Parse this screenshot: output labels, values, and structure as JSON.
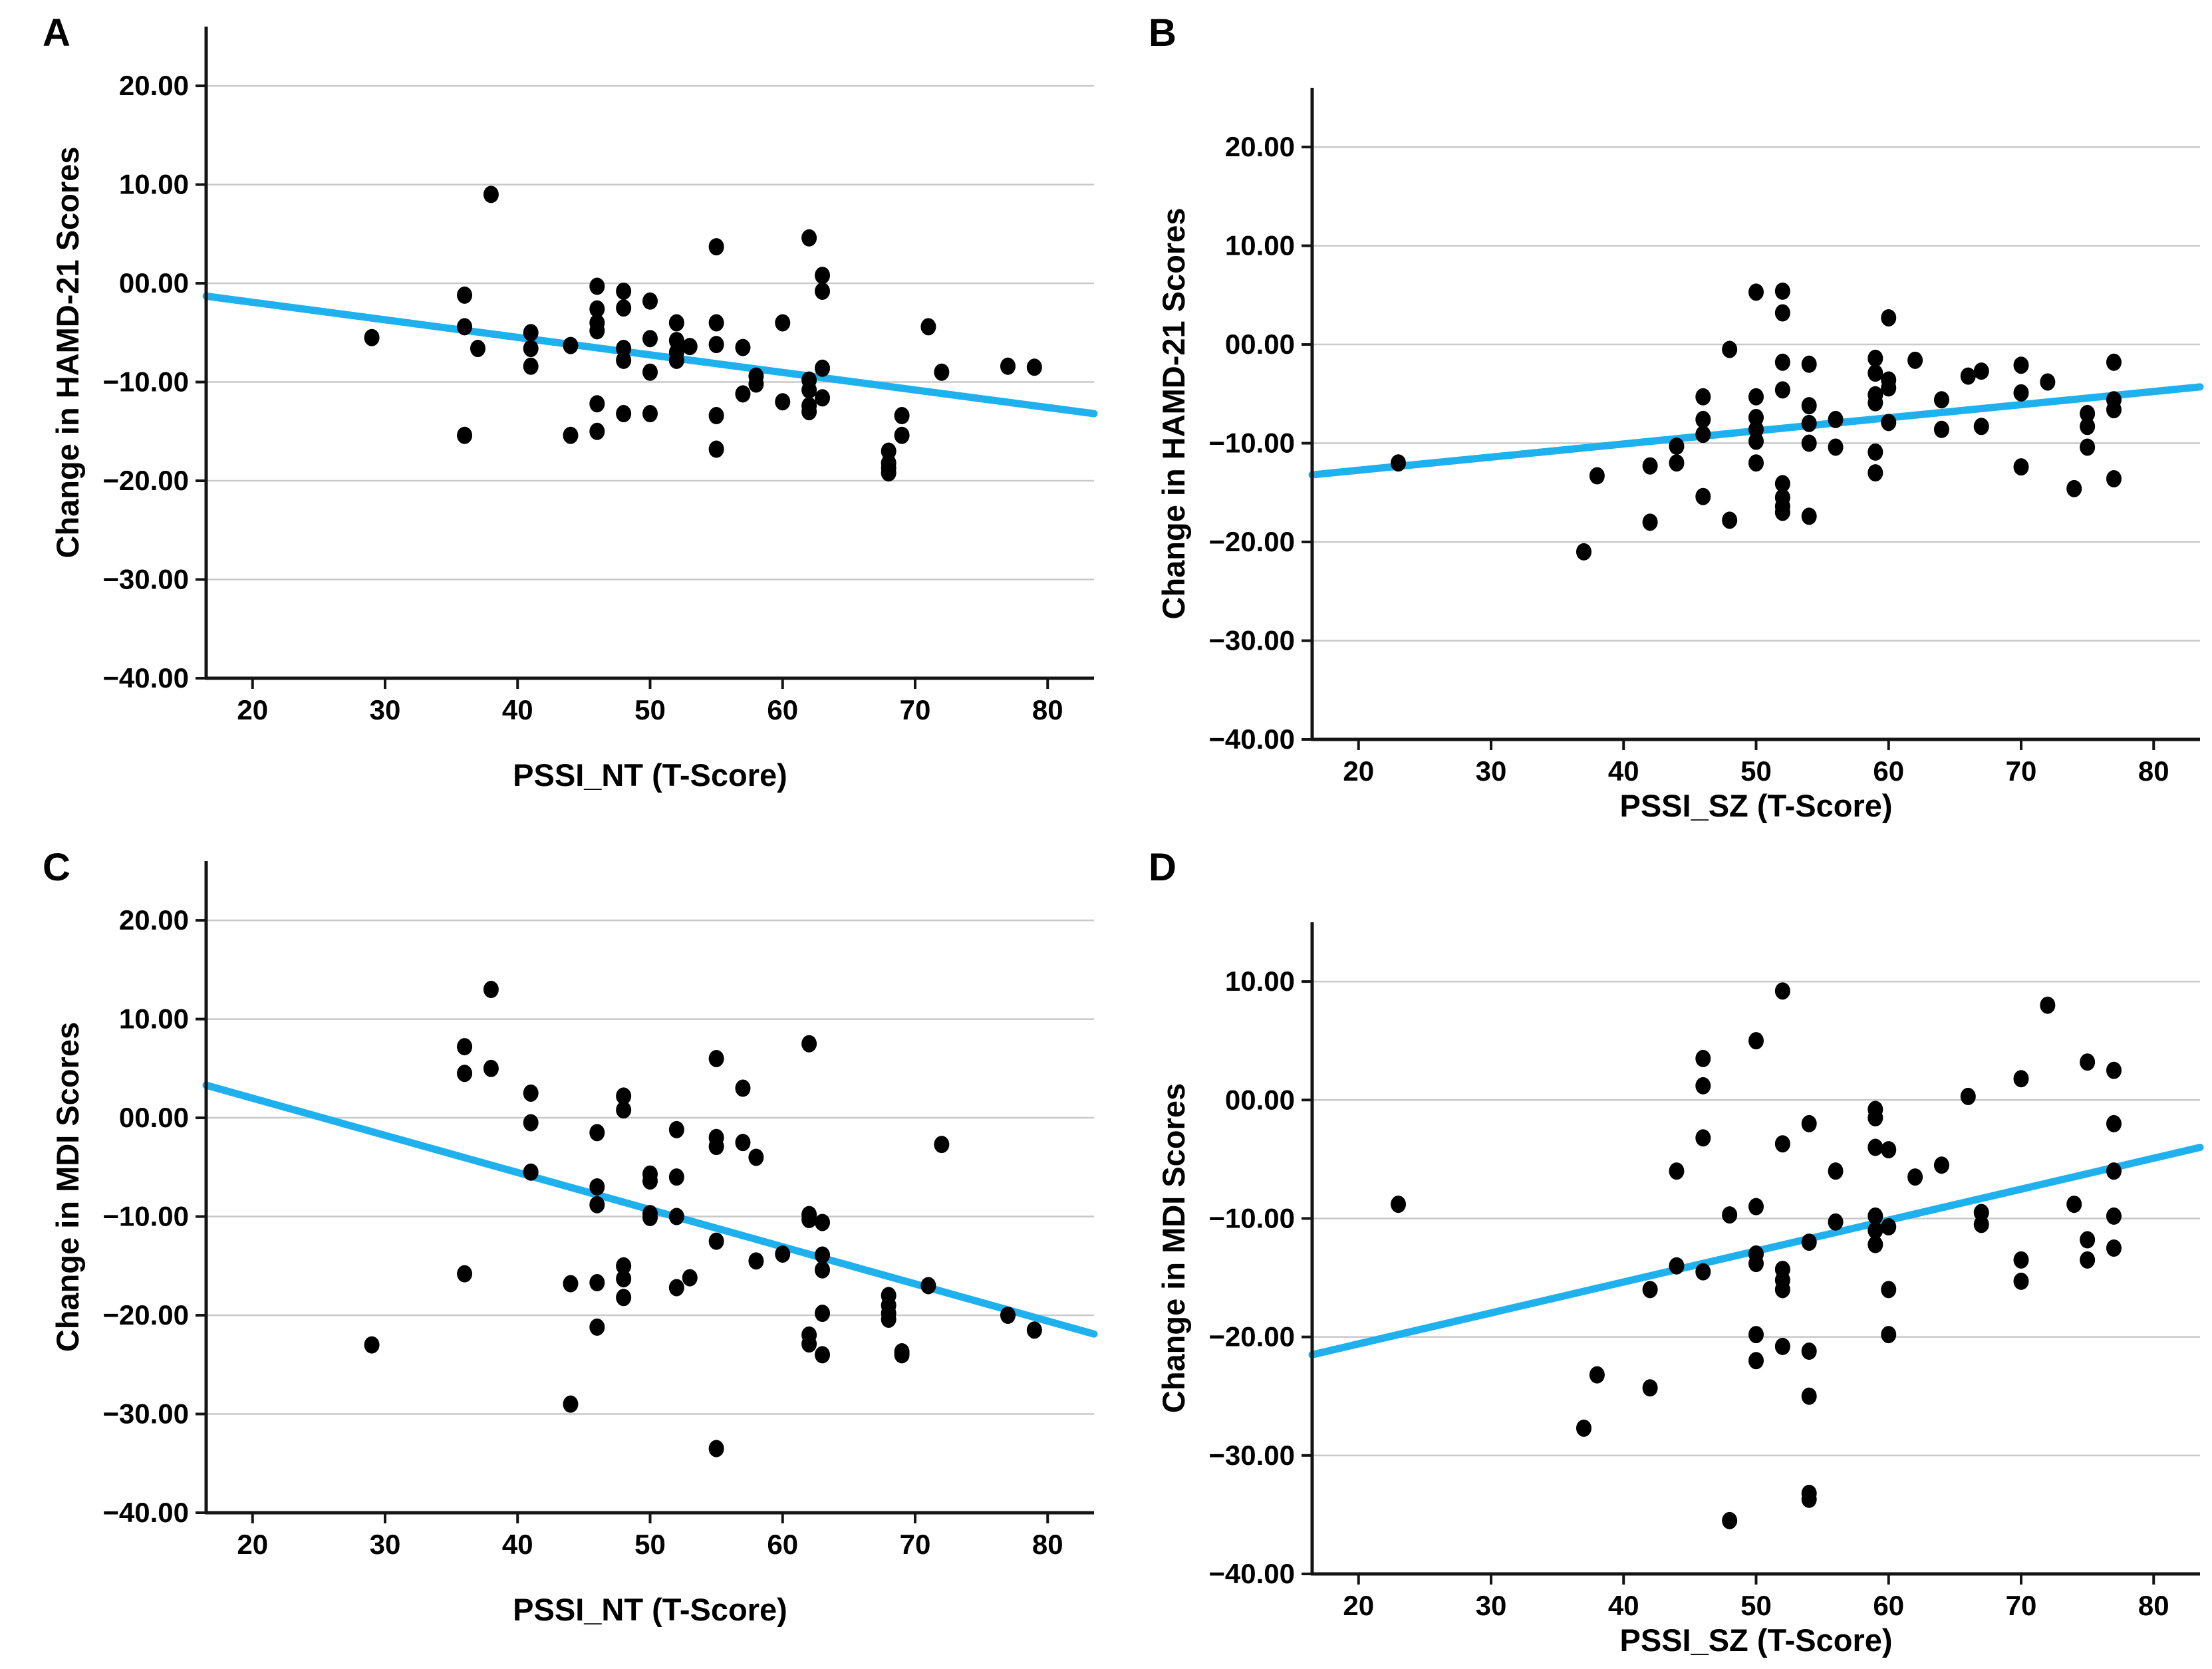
{
  "figure": {
    "background": "#ffffff",
    "accent_color": "#1fb0ee",
    "grid_color": "#c9c9c9",
    "axis_color": "#141414",
    "point_color": "#000000",
    "text_color": "#000000"
  },
  "chart_data": [
    {
      "id": "panel-a",
      "label": "A",
      "type": "scatter",
      "xlabel": "PSSI_NT (T-Score)",
      "ylabel": "Change in HAMD-21 Scores",
      "xlim": [
        16.5,
        83.5
      ],
      "ylim": [
        -40,
        26
      ],
      "grid": "horizontal",
      "legend": "none",
      "x_ticks": [
        20,
        30,
        40,
        50,
        60,
        70,
        80
      ],
      "x_tick_labels": [
        "20",
        "30",
        "40",
        "50",
        "60",
        "70",
        "80"
      ],
      "y_ticks": [
        20,
        10,
        0,
        -10,
        -20,
        -30,
        -40
      ],
      "y_tick_labels": [
        "20.00",
        "10.00",
        "00.00",
        "−10.00",
        "−20.00",
        "−30.00",
        "−40.00"
      ],
      "trend": {
        "x": [
          16.5,
          83.5
        ],
        "y": [
          -1.3,
          -13.2
        ]
      },
      "points": [
        [
          29,
          -5.5
        ],
        [
          36,
          -1.2
        ],
        [
          36,
          -4.4
        ],
        [
          36,
          -15.4
        ],
        [
          37,
          -6.6
        ],
        [
          38,
          9
        ],
        [
          41,
          -5
        ],
        [
          41,
          -6.6
        ],
        [
          41,
          -8.4
        ],
        [
          44,
          -6.3
        ],
        [
          44,
          -15.4
        ],
        [
          46,
          -0.3
        ],
        [
          46,
          -2.6
        ],
        [
          46,
          -4
        ],
        [
          46,
          -4.8
        ],
        [
          46,
          -12.2
        ],
        [
          46,
          -15
        ],
        [
          48,
          -0.8
        ],
        [
          48,
          -2.5
        ],
        [
          48,
          -6.6
        ],
        [
          48,
          -7.8
        ],
        [
          48,
          -13.2
        ],
        [
          50,
          -1.8
        ],
        [
          50,
          -5.6
        ],
        [
          50,
          -9
        ],
        [
          50,
          -13.2
        ],
        [
          52,
          -4
        ],
        [
          52,
          -5.8
        ],
        [
          52,
          -7
        ],
        [
          52,
          -7.8
        ],
        [
          53,
          -6.4
        ],
        [
          55,
          3.7
        ],
        [
          55,
          -4
        ],
        [
          55,
          -6.2
        ],
        [
          55,
          -13.4
        ],
        [
          55,
          -16.8
        ],
        [
          57,
          -6.5
        ],
        [
          57,
          -11.2
        ],
        [
          58,
          -9.4
        ],
        [
          58,
          -10.2
        ],
        [
          60,
          -4
        ],
        [
          60,
          -12
        ],
        [
          62,
          4.6
        ],
        [
          62,
          -9.8
        ],
        [
          62,
          -10.8
        ],
        [
          62,
          -12.4
        ],
        [
          62,
          -13
        ],
        [
          63,
          0.8
        ],
        [
          63,
          -0.8
        ],
        [
          63,
          -8.6
        ],
        [
          63,
          -11.6
        ],
        [
          68,
          -17
        ],
        [
          68,
          -18.2
        ],
        [
          68,
          -18.7
        ],
        [
          68,
          -19.2
        ],
        [
          69,
          -13.4
        ],
        [
          69,
          -15.4
        ],
        [
          71,
          -4.4
        ],
        [
          72,
          -9
        ],
        [
          77,
          -8.4
        ],
        [
          79,
          -8.5
        ]
      ]
    },
    {
      "id": "panel-b",
      "label": "B",
      "type": "scatter",
      "xlabel": "PSSI_SZ (T-Score)",
      "ylabel": "Change in HAMD-21 Scores",
      "xlim": [
        16.5,
        83.5
      ],
      "ylim": [
        -40,
        26
      ],
      "grid": "horizontal",
      "legend": "none",
      "x_ticks": [
        20,
        30,
        40,
        50,
        60,
        70,
        80
      ],
      "x_tick_labels": [
        "20",
        "30",
        "40",
        "50",
        "60",
        "70",
        "80"
      ],
      "y_ticks": [
        20,
        10,
        0,
        -10,
        -20,
        -30,
        -40
      ],
      "y_tick_labels": [
        "20.00",
        "10.00",
        "00.00",
        "−10.00",
        "−20.00",
        "−30.00",
        "−40.00"
      ],
      "trend": {
        "x": [
          16.5,
          83.5
        ],
        "y": [
          -13.2,
          -4.3
        ]
      },
      "points": [
        [
          23,
          -12
        ],
        [
          37,
          -21
        ],
        [
          38,
          -13.3
        ],
        [
          42,
          -12.3
        ],
        [
          42,
          -18
        ],
        [
          44,
          -10.3
        ],
        [
          44,
          -12
        ],
        [
          46,
          -5.3
        ],
        [
          46,
          -7.6
        ],
        [
          46,
          -9.1
        ],
        [
          46,
          -15.4
        ],
        [
          48,
          -0.5
        ],
        [
          48,
          -17.8
        ],
        [
          50,
          5.3
        ],
        [
          50,
          -5.3
        ],
        [
          50,
          -7.4
        ],
        [
          50,
          -8.6
        ],
        [
          50,
          -9.8
        ],
        [
          50,
          -12
        ],
        [
          52,
          5.4
        ],
        [
          52,
          3.2
        ],
        [
          52,
          -1.8
        ],
        [
          52,
          -4.6
        ],
        [
          52,
          -14.1
        ],
        [
          52,
          -15.5
        ],
        [
          52,
          -16.4
        ],
        [
          52,
          -17
        ],
        [
          54,
          -2
        ],
        [
          54,
          -6.2
        ],
        [
          54,
          -8
        ],
        [
          54,
          -10
        ],
        [
          54,
          -17.4
        ],
        [
          56,
          -7.6
        ],
        [
          56,
          -10.4
        ],
        [
          59,
          -1.4
        ],
        [
          59,
          -2.9
        ],
        [
          59,
          -5.1
        ],
        [
          59,
          -5.9
        ],
        [
          59,
          -10.9
        ],
        [
          59,
          -13
        ],
        [
          60,
          2.7
        ],
        [
          60,
          -3.6
        ],
        [
          60,
          -4.4
        ],
        [
          60,
          -7.9
        ],
        [
          62,
          -1.6
        ],
        [
          64,
          -5.6
        ],
        [
          64,
          -8.6
        ],
        [
          66,
          -3.2
        ],
        [
          67,
          -2.7
        ],
        [
          67,
          -8.3
        ],
        [
          70,
          -2.1
        ],
        [
          70,
          -4.9
        ],
        [
          70,
          -12.4
        ],
        [
          72,
          -3.8
        ],
        [
          74,
          -14.6
        ],
        [
          75,
          -7
        ],
        [
          75,
          -8.3
        ],
        [
          75,
          -10.4
        ],
        [
          77,
          -1.8
        ],
        [
          77,
          -5.6
        ],
        [
          77,
          -6.6
        ],
        [
          77,
          -13.6
        ]
      ]
    },
    {
      "id": "panel-c",
      "label": "C",
      "type": "scatter",
      "xlabel": "PSSI_NT (T-Score)",
      "ylabel": "Change in MDI Scores",
      "xlim": [
        16.5,
        83.5
      ],
      "ylim": [
        -40,
        26
      ],
      "grid": "horizontal",
      "legend": "none",
      "x_ticks": [
        20,
        30,
        40,
        50,
        60,
        70,
        80
      ],
      "x_tick_labels": [
        "20",
        "30",
        "40",
        "50",
        "60",
        "70",
        "80"
      ],
      "y_ticks": [
        20,
        10,
        0,
        -10,
        -20,
        -30,
        -40
      ],
      "y_tick_labels": [
        "20.00",
        "10.00",
        "00.00",
        "−10.00",
        "−20.00",
        "−30.00",
        "−40.00"
      ],
      "trend": {
        "x": [
          16.5,
          83.5
        ],
        "y": [
          3.3,
          -21.9
        ]
      },
      "points": [
        [
          29,
          -23
        ],
        [
          36,
          7.2
        ],
        [
          36,
          4.5
        ],
        [
          36,
          -15.8
        ],
        [
          38,
          13
        ],
        [
          38,
          5
        ],
        [
          41,
          2.5
        ],
        [
          41,
          -0.5
        ],
        [
          41,
          -5.5
        ],
        [
          44,
          -16.8
        ],
        [
          44,
          -29
        ],
        [
          46,
          -1.5
        ],
        [
          46,
          -7
        ],
        [
          46,
          -8.8
        ],
        [
          46,
          -16.7
        ],
        [
          46,
          -21.2
        ],
        [
          48,
          2.2
        ],
        [
          48,
          0.8
        ],
        [
          48,
          -15
        ],
        [
          48,
          -16.3
        ],
        [
          48,
          -18.2
        ],
        [
          50,
          -5.7
        ],
        [
          50,
          -6.4
        ],
        [
          50,
          -9.7
        ],
        [
          50,
          -10.1
        ],
        [
          52,
          -1.2
        ],
        [
          52,
          -6
        ],
        [
          52,
          -10
        ],
        [
          52,
          -17.2
        ],
        [
          53,
          -16.2
        ],
        [
          55,
          6
        ],
        [
          55,
          -2
        ],
        [
          55,
          -2.9
        ],
        [
          55,
          -12.5
        ],
        [
          55,
          -33.5
        ],
        [
          57,
          3
        ],
        [
          57,
          -2.5
        ],
        [
          58,
          -4
        ],
        [
          58,
          -14.5
        ],
        [
          60,
          -13.8
        ],
        [
          62,
          7.5
        ],
        [
          62,
          -9.8
        ],
        [
          62,
          -10.3
        ],
        [
          62,
          -22
        ],
        [
          62,
          -22.9
        ],
        [
          63,
          -10.6
        ],
        [
          63,
          -13.9
        ],
        [
          63,
          -15.4
        ],
        [
          63,
          -19.8
        ],
        [
          63,
          -24
        ],
        [
          68,
          -18
        ],
        [
          68,
          -19
        ],
        [
          68,
          -19.8
        ],
        [
          68,
          -20.4
        ],
        [
          69,
          -23.7
        ],
        [
          69,
          -24
        ],
        [
          71,
          -17
        ],
        [
          72,
          -2.7
        ],
        [
          77,
          -20
        ],
        [
          79,
          -21.5
        ]
      ]
    },
    {
      "id": "panel-d",
      "label": "D",
      "type": "scatter",
      "xlabel": "PSSI_SZ (T-Score)",
      "ylabel": "Change in MDI Scores",
      "xlim": [
        16.5,
        83.5
      ],
      "ylim": [
        -40,
        15
      ],
      "grid": "horizontal",
      "legend": "none",
      "x_ticks": [
        20,
        30,
        40,
        50,
        60,
        70,
        80
      ],
      "x_tick_labels": [
        "20",
        "30",
        "40",
        "50",
        "60",
        "70",
        "80"
      ],
      "y_ticks": [
        10,
        0,
        -10,
        -20,
        -30,
        -40
      ],
      "y_tick_labels": [
        "10.00",
        "00.00",
        "−10.00",
        "−20.00",
        "−30.00",
        "−40.00"
      ],
      "trend": {
        "x": [
          16.5,
          83.5
        ],
        "y": [
          -21.5,
          -4.0
        ]
      },
      "points": [
        [
          23,
          -8.8
        ],
        [
          37,
          -27.7
        ],
        [
          38,
          -23.2
        ],
        [
          42,
          -16
        ],
        [
          42,
          -24.3
        ],
        [
          44,
          -6
        ],
        [
          44,
          -14
        ],
        [
          46,
          3.5
        ],
        [
          46,
          1.2
        ],
        [
          46,
          -3.2
        ],
        [
          46,
          -14.5
        ],
        [
          48,
          -9.7
        ],
        [
          48,
          -35.5
        ],
        [
          50,
          5
        ],
        [
          50,
          -9
        ],
        [
          50,
          -13
        ],
        [
          50,
          -13.8
        ],
        [
          50,
          -19.8
        ],
        [
          50,
          -22
        ],
        [
          52,
          9.2
        ],
        [
          52,
          -3.7
        ],
        [
          52,
          -14.3
        ],
        [
          52,
          -15.2
        ],
        [
          52,
          -16
        ],
        [
          52,
          -20.8
        ],
        [
          54,
          -2
        ],
        [
          54,
          -12
        ],
        [
          54,
          -21.2
        ],
        [
          54,
          -25
        ],
        [
          54,
          -33.2
        ],
        [
          54,
          -33.7
        ],
        [
          56,
          -6
        ],
        [
          56,
          -10.3
        ],
        [
          59,
          -0.8
        ],
        [
          59,
          -1.5
        ],
        [
          59,
          -4
        ],
        [
          59,
          -9.8
        ],
        [
          59,
          -11
        ],
        [
          59,
          -12.2
        ],
        [
          60,
          -4.2
        ],
        [
          60,
          -10.7
        ],
        [
          60,
          -16
        ],
        [
          60,
          -19.8
        ],
        [
          62,
          -6.5
        ],
        [
          64,
          -5.5
        ],
        [
          66,
          0.3
        ],
        [
          67,
          -9.5
        ],
        [
          67,
          -10.5
        ],
        [
          70,
          1.8
        ],
        [
          70,
          -13.5
        ],
        [
          70,
          -15.3
        ],
        [
          72,
          8
        ],
        [
          74,
          -8.8
        ],
        [
          75,
          3.2
        ],
        [
          75,
          -11.8
        ],
        [
          75,
          -13.5
        ],
        [
          77,
          2.5
        ],
        [
          77,
          -2
        ],
        [
          77,
          -6
        ],
        [
          77,
          -9.8
        ],
        [
          77,
          -12.5
        ]
      ]
    }
  ]
}
